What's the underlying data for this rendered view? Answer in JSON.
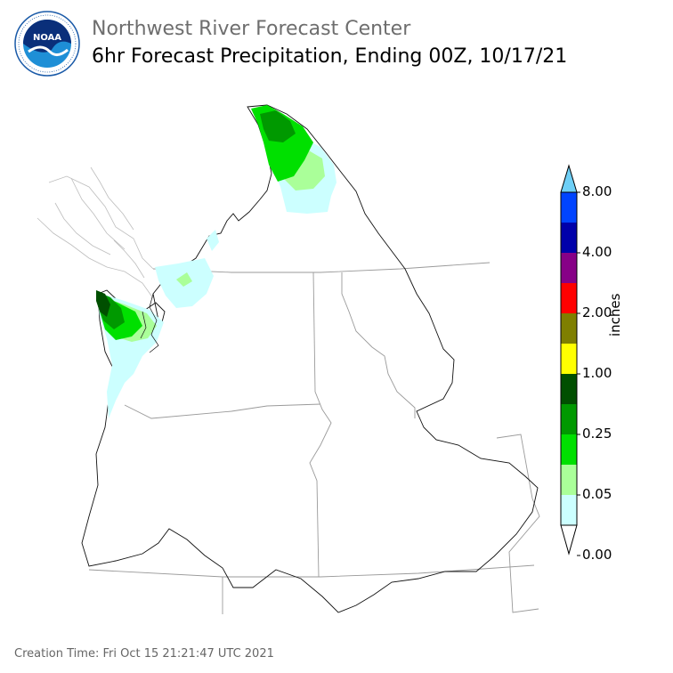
{
  "header": {
    "title": "Northwest River Forecast Center",
    "subtitle": "6hr Forecast Precipitation, Ending 00Z, 10/17/21"
  },
  "logo": {
    "text": "NOAA",
    "ring_text": "NATIONAL OCEANIC AND ATMOSPHERIC ADMINISTRATION · U.S. DEPARTMENT OF COMMERCE",
    "colors": {
      "ring": "#ffffff",
      "outer": "#1a5aa8",
      "sky": "#0a2f7a",
      "sea": "#1e8fd6"
    }
  },
  "legend": {
    "unit": "inches",
    "tick_labels": [
      "8.00",
      "4.00",
      "2.00",
      "1.00",
      "0.25",
      "0.05",
      "0.00"
    ],
    "bins": [
      {
        "color": "#ffffff"
      },
      {
        "color": "#ccffff"
      },
      {
        "color": "#aaff99"
      },
      {
        "color": "#00e000"
      },
      {
        "color": "#009900"
      },
      {
        "color": "#004f00"
      },
      {
        "color": "#ffff00"
      },
      {
        "color": "#7f7f00"
      },
      {
        "color": "#ff0000"
      },
      {
        "color": "#870087"
      },
      {
        "color": "#0000aa"
      },
      {
        "color": "#0044ff"
      },
      {
        "color": "#6ecff6"
      }
    ]
  },
  "footer": {
    "creation_time": "Creation Time: Fri Oct 15 21:21:47 UTC 2021"
  }
}
